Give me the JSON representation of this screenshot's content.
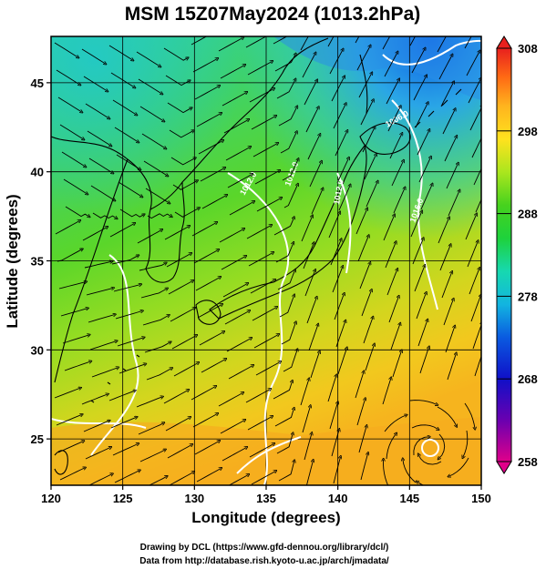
{
  "title": "MSM 15Z07May2024 (1013.2hPa)",
  "xlabel": "Longitude (degrees)",
  "ylabel": "Latitude  (degrees)",
  "x_ticks": [
    120,
    125,
    130,
    135,
    140,
    145,
    150
  ],
  "y_ticks": [
    25,
    30,
    35,
    40,
    45
  ],
  "xlim": [
    120,
    150
  ],
  "ylim": [
    22.4,
    47.6
  ],
  "colorbar": {
    "min": 258,
    "max": 308,
    "labels": [
      "308",
      "298",
      "288",
      "278",
      "268",
      "258"
    ],
    "label_values": [
      308,
      298,
      288,
      278,
      268,
      258
    ],
    "colors": [
      "#e0008a",
      "#6a00b0",
      "#1010c8",
      "#0a5ae0",
      "#12b4e0",
      "#17d8b0",
      "#1ed23c",
      "#46d21e",
      "#aae61e",
      "#ffe21e",
      "#ffb41e",
      "#ff6a14",
      "#e8201e"
    ]
  },
  "isobar_labels": [
    "1012.0",
    "1012.0",
    "1006.0",
    "1012.0",
    "1016.0"
  ],
  "credits": [
    "Drawing by DCL (https://www.gfd-dennou.org/library/dcl/)",
    "Data from http://database.rish.kyoto-u.ac.jp/arch/jmadata/"
  ]
}
